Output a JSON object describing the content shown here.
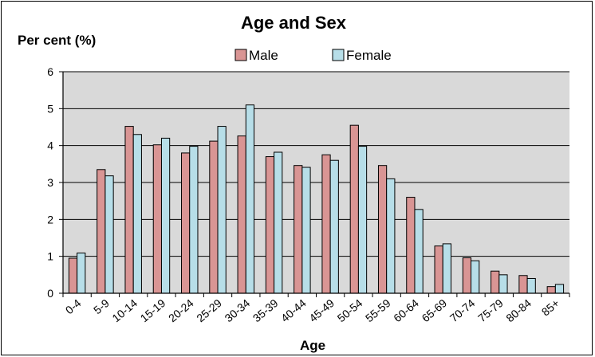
{
  "chart_data": {
    "type": "bar",
    "title": "Age and Sex",
    "ylabel": "Per cent (%)",
    "xlabel": "Age",
    "ylim": [
      0,
      6
    ],
    "yticks": [
      "0",
      "1",
      "2",
      "3",
      "4",
      "5",
      "6"
    ],
    "grid": true,
    "legend_position": "top-center",
    "categories": [
      "0-4",
      "5-9",
      "10-14",
      "15-19",
      "20-24",
      "25-29",
      "30-34",
      "35-39",
      "40-44",
      "45-49",
      "50-54",
      "55-59",
      "60-64",
      "65-69",
      "70-74",
      "75-79",
      "80-84",
      "85+"
    ],
    "series": [
      {
        "name": "Male",
        "color": "#d99594",
        "values": [
          0.95,
          3.35,
          4.52,
          4.02,
          3.8,
          4.12,
          4.26,
          3.7,
          3.46,
          3.75,
          4.55,
          3.46,
          2.6,
          1.28,
          0.96,
          0.6,
          0.48,
          0.18
        ]
      },
      {
        "name": "Female",
        "color": "#b7dee8",
        "values": [
          1.09,
          3.18,
          4.3,
          4.2,
          3.98,
          4.52,
          5.1,
          3.82,
          3.41,
          3.6,
          3.98,
          3.1,
          2.27,
          1.34,
          0.88,
          0.5,
          0.4,
          0.24
        ]
      }
    ],
    "plot_background": "#d9d9d9"
  }
}
